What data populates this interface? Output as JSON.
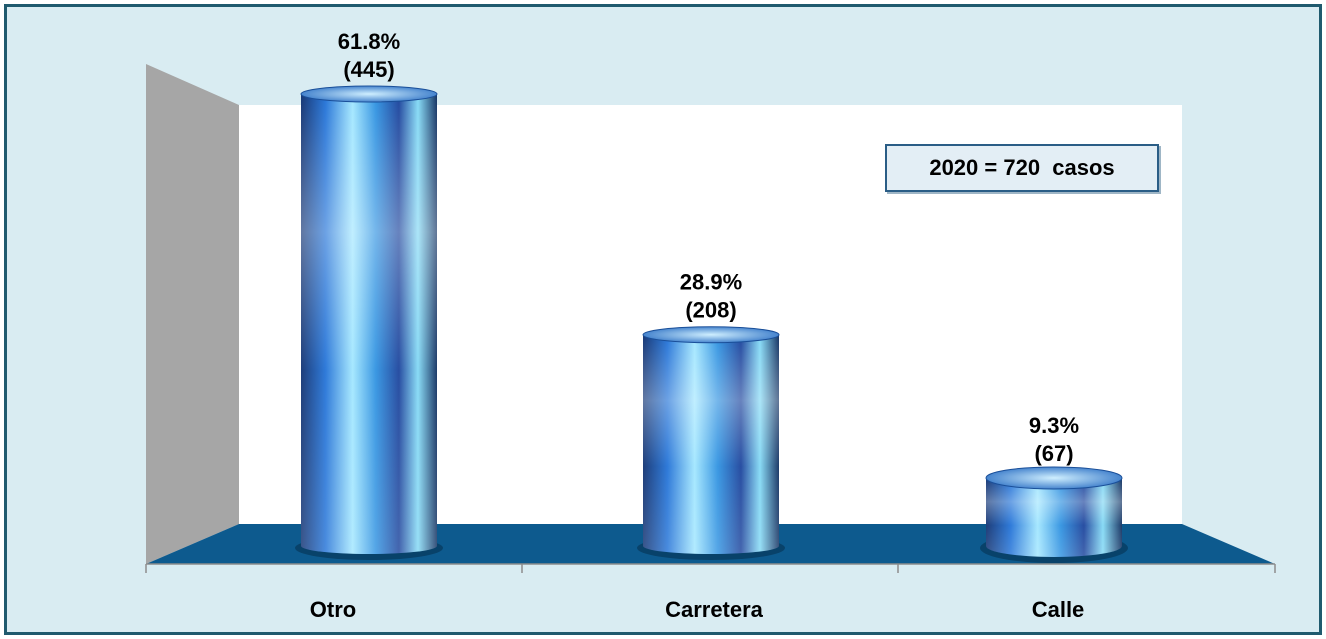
{
  "chart_data": {
    "type": "bar",
    "style": "3d-cylinder",
    "categories": [
      "Otro",
      "Carretera",
      "Calle"
    ],
    "values": [
      445,
      208,
      67
    ],
    "percent_labels": [
      "61.8%",
      "28.9%",
      "9.3%"
    ],
    "count_labels": [
      "(445)",
      "(208)",
      "(67)"
    ],
    "annotation": "2020 = 720  casos",
    "grid": false,
    "colors": {
      "background": "#d9ecf2",
      "frame": "#1f5a6e",
      "floor": "#0d5a8e",
      "back_wall": "#ffffff",
      "side_wall": "#a6a6a6",
      "cylinder_dark": "#0b2d6e",
      "cylinder_mid": "#1d6fd6",
      "cylinder_light": "#9fe6ff"
    }
  }
}
